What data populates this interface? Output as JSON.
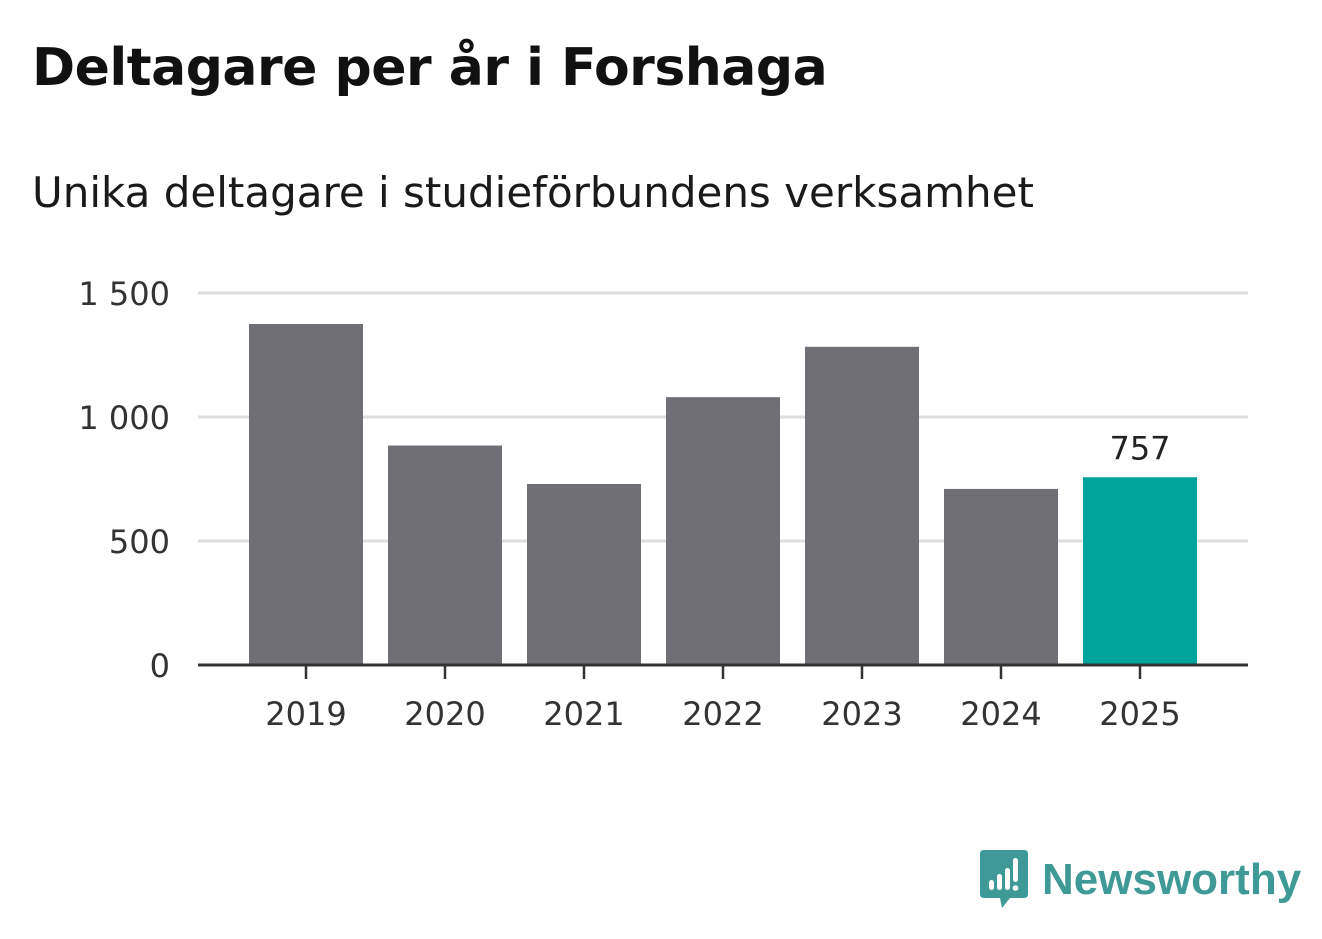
{
  "chart_data": {
    "type": "bar",
    "title": "Deltagare per år i Forshaga",
    "subtitle": "Unika deltagare i studieförbundens verksamhet",
    "categories": [
      "2019",
      "2020",
      "2021",
      "2022",
      "2023",
      "2024",
      "2025"
    ],
    "values": [
      1375,
      885,
      730,
      1080,
      1283,
      710,
      757
    ],
    "ylim": [
      0,
      1500
    ],
    "yticks": [
      0,
      500,
      1000,
      1500
    ],
    "ytick_labels": [
      "0",
      "500",
      "1 000",
      "1 500"
    ],
    "highlight_index": 6,
    "highlight_label": "757",
    "grid": true,
    "colors": {
      "bar": "#706f75",
      "highlight": "#00a49a",
      "grid": "#dddddd",
      "axis": "#333333"
    }
  },
  "brand": {
    "name": "Newsworthy",
    "color": "#3f9a97",
    "icon": "newsworthy-logo-icon"
  }
}
